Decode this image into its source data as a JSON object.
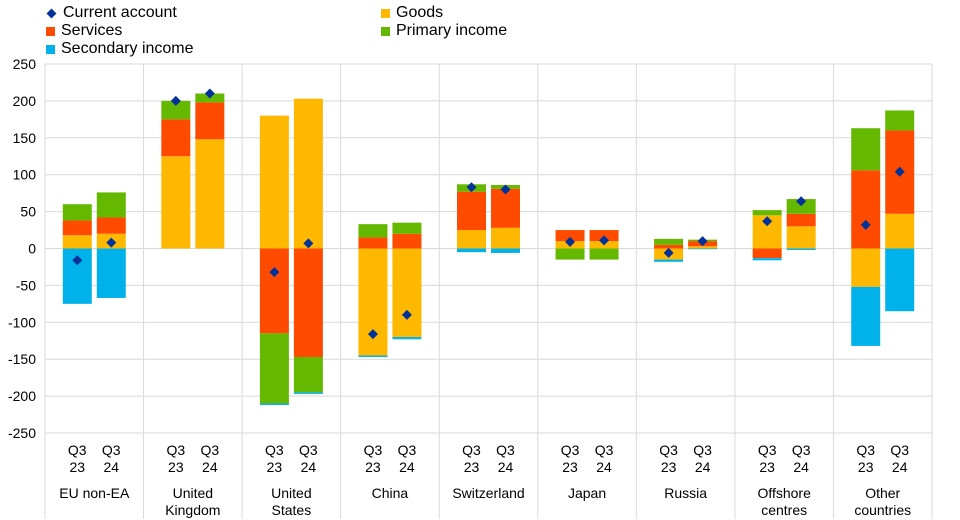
{
  "chart_data": {
    "type": "bar",
    "stacked": true,
    "ylim": [
      -250,
      250
    ],
    "yticks": [
      250,
      200,
      150,
      100,
      50,
      0,
      -50,
      -100,
      -150,
      -200,
      -250
    ],
    "grid": true,
    "legend_position": "top-left",
    "groups": [
      {
        "label": [
          "EU non-EA"
        ],
        "bars": [
          "Q3 23",
          "Q3 24"
        ]
      },
      {
        "label": [
          "United",
          "Kingdom"
        ],
        "bars": [
          "Q3 23",
          "Q3 24"
        ]
      },
      {
        "label": [
          "United",
          "States"
        ],
        "bars": [
          "Q3 23",
          "Q3 24"
        ]
      },
      {
        "label": [
          "China"
        ],
        "bars": [
          "Q3 23",
          "Q3 24"
        ]
      },
      {
        "label": [
          "Switzerland"
        ],
        "bars": [
          "Q3 23",
          "Q3 24"
        ]
      },
      {
        "label": [
          "Japan"
        ],
        "bars": [
          "Q3 23",
          "Q3 24"
        ]
      },
      {
        "label": [
          "Russia"
        ],
        "bars": [
          "Q3 23",
          "Q3 24"
        ]
      },
      {
        "label": [
          "Offshore",
          "centres"
        ],
        "bars": [
          "Q3 23",
          "Q3 24"
        ]
      },
      {
        "label": [
          "Other",
          "countries"
        ],
        "bars": [
          "Q3 23",
          "Q3 24"
        ]
      }
    ],
    "series": [
      {
        "name": "Goods",
        "color": "#FFB800",
        "values": [
          18,
          20,
          125,
          148,
          180,
          203,
          -145,
          -120,
          25,
          28,
          10,
          10,
          -15,
          3,
          45,
          30,
          -52,
          47
        ]
      },
      {
        "name": "Services",
        "color": "#FF4B00",
        "values": [
          20,
          22,
          50,
          50,
          -115,
          -147,
          15,
          20,
          52,
          53,
          15,
          15,
          5,
          7,
          -13,
          17,
          106,
          113
        ]
      },
      {
        "name": "Primary income",
        "color": "#65B800",
        "values": [
          22,
          34,
          25,
          12,
          -95,
          -48,
          18,
          15,
          10,
          5,
          -15,
          -15,
          8,
          2,
          7,
          20,
          57,
          27
        ]
      },
      {
        "name": "Secondary income",
        "color": "#00B1EA",
        "values": [
          -75,
          -67,
          0,
          0,
          -2,
          -2,
          -2,
          -3,
          -5,
          -6,
          0,
          0,
          -3,
          -1,
          -3,
          -2,
          -80,
          -85
        ]
      }
    ],
    "current_account": {
      "name": "Current account",
      "color": "#003299",
      "values": [
        -16,
        8,
        200,
        210,
        -32,
        7,
        -116,
        -90,
        83,
        80,
        9,
        11,
        -6,
        10,
        37,
        64,
        32,
        104
      ]
    },
    "legend_order": [
      "Current account",
      "Goods",
      "Services",
      "Primary income",
      "Secondary income"
    ]
  }
}
